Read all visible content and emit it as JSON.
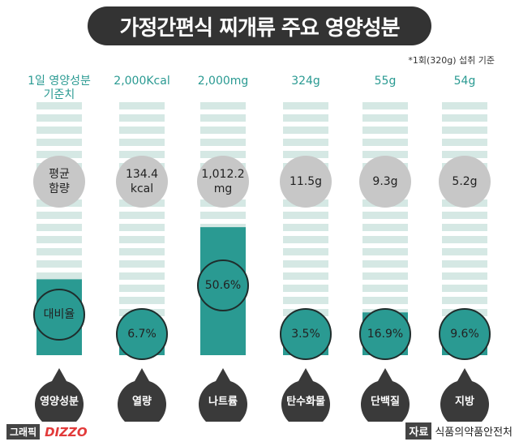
{
  "title": "가정간편식 찌개류 주요 영양성분",
  "note": "*1회(320g) 섭취 기준",
  "row_labels": {
    "avg": "평균\n함량",
    "ratio": "대비율"
  },
  "chart_data": {
    "type": "bar",
    "categories": [
      "영양성분",
      "열량",
      "나트륨",
      "탄수화물",
      "단백질",
      "지방"
    ],
    "daily_reference": [
      "1일 영양성분\n기준치",
      "2,000Kcal",
      "2,000mg",
      "324g",
      "55g",
      "54g"
    ],
    "average_content": [
      "",
      "134.4\nkcal",
      "1,012.2\nmg",
      "11.5g",
      "9.3g",
      "5.2g"
    ],
    "values": [
      30,
      6.7,
      50.6,
      3.5,
      16.9,
      9.6
    ],
    "value_labels": [
      "",
      "6.7%",
      "50.6%",
      "3.5%",
      "16.9%",
      "9.6%"
    ],
    "ylim": [
      0,
      100
    ],
    "colors": {
      "bar": "#2a9a92",
      "stripe": "#d5e8e4",
      "badge": "#3a3a3a"
    }
  },
  "footer": {
    "brand_label": "그래픽",
    "brand_logo": "DIZZO",
    "source_tag": "자료",
    "source_text": "식품의약품안전처"
  }
}
